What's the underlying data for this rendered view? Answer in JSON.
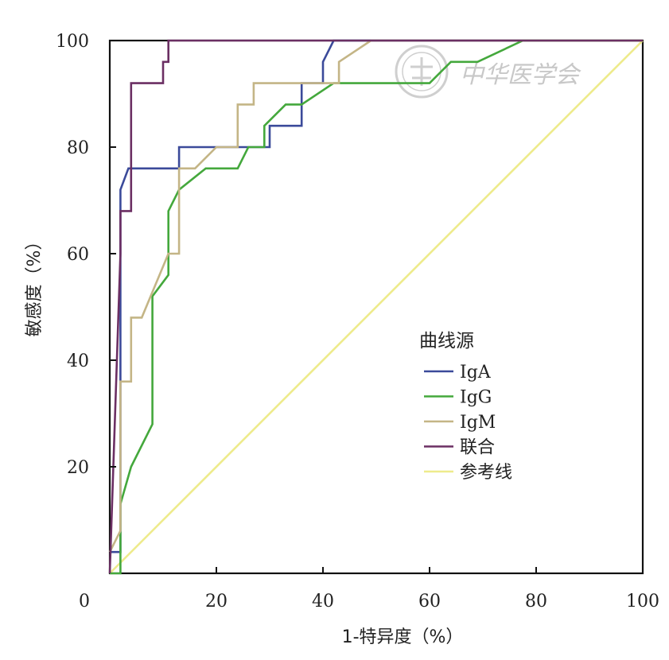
{
  "chart_data": {
    "type": "line",
    "title": "",
    "xlabel": "1-特异度（%）",
    "ylabel": "敏感度（%）",
    "xlim": [
      0,
      100
    ],
    "ylim": [
      0,
      100
    ],
    "x_ticks": [
      "0",
      "20",
      "40",
      "60",
      "80",
      "100"
    ],
    "y_ticks": [
      "20",
      "40",
      "60",
      "80",
      "100"
    ],
    "grid": false,
    "legend_title": "曲线源",
    "legend_position": "center-right",
    "watermark": "中华医学会",
    "series": [
      {
        "name": "IgA",
        "color": "#3b4a9a",
        "x": [
          0,
          2,
          2,
          2,
          2,
          3.5,
          3.5,
          13,
          13,
          24,
          24,
          30,
          30,
          36,
          36,
          40,
          40,
          42,
          100
        ],
        "y": [
          4,
          4,
          36,
          72,
          72,
          76,
          76,
          76,
          80,
          80,
          80,
          80,
          84,
          84,
          92,
          92,
          96,
          100,
          100
        ]
      },
      {
        "name": "IgG",
        "color": "#44a83c",
        "x": [
          0,
          2,
          2,
          2,
          4,
          8,
          8,
          11,
          11,
          12,
          13,
          18,
          24,
          26,
          29,
          29,
          33,
          36,
          42,
          60,
          64,
          69,
          77.5,
          100
        ],
        "y": [
          0,
          0,
          8,
          13,
          20,
          28,
          52,
          56,
          68,
          70,
          72,
          76,
          76,
          80,
          80,
          84,
          88,
          88,
          92,
          92,
          96,
          96,
          100,
          100
        ]
      },
      {
        "name": "IgM",
        "color": "#c4b586",
        "x": [
          0,
          2,
          2,
          4,
          4,
          6,
          6,
          11,
          11,
          13,
          13,
          16,
          20,
          24,
          24,
          27,
          27,
          41,
          43,
          43,
          49,
          100
        ],
        "y": [
          4,
          8,
          36,
          36,
          48,
          48,
          48,
          60,
          60,
          60,
          76,
          76,
          80,
          80,
          88,
          88,
          92,
          92,
          92,
          96,
          100,
          100
        ]
      },
      {
        "name": "联合",
        "color": "#6b2f63",
        "x": [
          0,
          2,
          2,
          4,
          4,
          10,
          10,
          11,
          11,
          100
        ],
        "y": [
          0,
          60,
          68,
          68,
          92,
          92,
          96,
          96,
          100,
          100
        ]
      },
      {
        "name": "参考线",
        "color": "#eeeb8c",
        "x": [
          0,
          100
        ],
        "y": [
          0,
          100
        ]
      }
    ]
  }
}
